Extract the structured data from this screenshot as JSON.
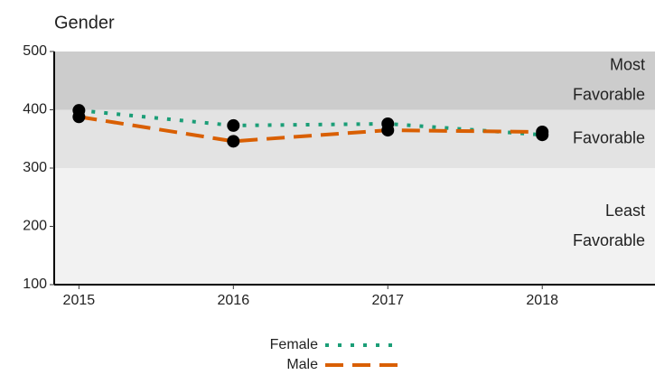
{
  "chart_data": {
    "type": "line",
    "title": "Gender",
    "x": [
      2015,
      2016,
      2017,
      2018
    ],
    "xlim": [
      2014.84,
      2018.73
    ],
    "xticks": [
      2015,
      2016,
      2017,
      2018
    ],
    "ylim": [
      100,
      500
    ],
    "yticks": [
      100,
      200,
      300,
      400,
      500
    ],
    "bands": [
      {
        "from": 100,
        "to": 300,
        "color": "#f2f2f2",
        "label": [
          "Least",
          "Favorable"
        ]
      },
      {
        "from": 300,
        "to": 400,
        "color": "#e3e3e3",
        "label": [
          "Favorable"
        ]
      },
      {
        "from": 400,
        "to": 500,
        "color": "#cccccc",
        "label": [
          "Most",
          "Favorable"
        ]
      }
    ],
    "series": [
      {
        "name": "Female",
        "color": "#1b9e77",
        "style": "dotted",
        "values": [
          399,
          373,
          376,
          357
        ]
      },
      {
        "name": "Male",
        "color": "#d95f02",
        "style": "dashed",
        "values": [
          388,
          346,
          365,
          362
        ]
      }
    ],
    "point_color": "#000000"
  }
}
